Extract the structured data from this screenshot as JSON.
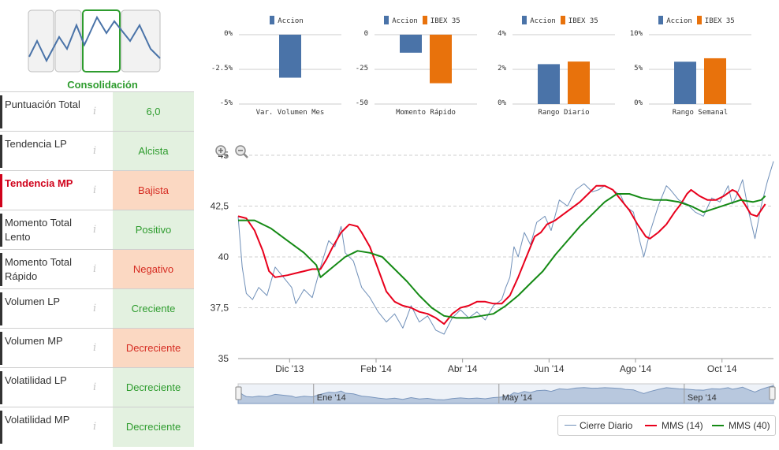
{
  "stage": {
    "label": "Consolidación",
    "icon": "stage-thumbnail-icon"
  },
  "indicators": [
    {
      "label": "Puntuación Total",
      "value": "6,0",
      "status": "good",
      "alert": false
    },
    {
      "label": "Tendencia LP",
      "value": "Alcista",
      "status": "good",
      "alert": false
    },
    {
      "label": "Tendencia MP",
      "value": "Bajista",
      "status": "bad",
      "alert": true
    },
    {
      "label": "Momento Total Lento",
      "value": "Positivo",
      "status": "good",
      "alert": false
    },
    {
      "label": "Momento Total Rápido",
      "value": "Negativo",
      "status": "bad",
      "alert": false
    },
    {
      "label": "Volumen LP",
      "value": "Creciente",
      "status": "good",
      "alert": false
    },
    {
      "label": "Volumen MP",
      "value": "Decreciente",
      "status": "bad",
      "alert": false
    },
    {
      "label": "Volatilidad LP",
      "value": "Decreciente",
      "status": "good",
      "alert": false
    },
    {
      "label": "Volatilidad MP",
      "value": "Decreciente",
      "status": "good",
      "alert": false
    }
  ],
  "info_glyph": "i",
  "colors": {
    "accion": "#4a73a8",
    "ibex": "#e8720c",
    "mms14": "#e8001c",
    "mms40": "#158a15",
    "cierre": "#6f8fb8",
    "good_bg": "#e3f1e0",
    "bad_bg": "#fbd8c2"
  },
  "chart_data": [
    {
      "type": "bar",
      "title": "",
      "xlabel": "Var. Volumen Mes",
      "series": [
        {
          "name": "Accion",
          "values": [
            -3.1
          ]
        }
      ],
      "yticks": [
        "0%",
        "-2.5%",
        "-5%"
      ],
      "ylim": [
        -5,
        0
      ]
    },
    {
      "type": "bar",
      "title": "",
      "xlabel": "Momento Rápido",
      "series": [
        {
          "name": "Accion",
          "values": [
            -13
          ]
        },
        {
          "name": "IBEX 35",
          "values": [
            -35
          ]
        }
      ],
      "yticks": [
        "0",
        "-25",
        "-50"
      ],
      "ylim": [
        -50,
        0
      ]
    },
    {
      "type": "bar",
      "title": "",
      "xlabel": "Rango Diario",
      "series": [
        {
          "name": "Accion",
          "values": [
            2.3
          ]
        },
        {
          "name": "IBEX 35",
          "values": [
            2.45
          ]
        }
      ],
      "yticks": [
        "4%",
        "2%",
        "0%"
      ],
      "ylim": [
        0,
        4
      ]
    },
    {
      "type": "bar",
      "title": "",
      "xlabel": "Rango Semanal",
      "series": [
        {
          "name": "Accion",
          "values": [
            6.1
          ]
        },
        {
          "name": "IBEX 35",
          "values": [
            6.6
          ]
        }
      ],
      "yticks": [
        "10%",
        "5%",
        "0%"
      ],
      "ylim": [
        0,
        10
      ]
    },
    {
      "type": "line",
      "title": "",
      "ylim": [
        35,
        45
      ],
      "yticks": [
        "45",
        "42,5",
        "40",
        "37,5",
        "35"
      ],
      "x_ticks": [
        "Dic '13",
        "Feb '14",
        "Abr '14",
        "Jun '14",
        "Ago '14",
        "Oct '14"
      ],
      "navigator_ticks": [
        "Ene '14",
        "May '14",
        "Sep '14"
      ],
      "x_domain": [
        0,
        12.6
      ],
      "series": [
        {
          "name": "Cierre Diario",
          "points": [
            [
              0,
              42.0
            ],
            [
              0.1,
              39.5
            ],
            [
              0.2,
              38.2
            ],
            [
              0.35,
              37.9
            ],
            [
              0.5,
              38.5
            ],
            [
              0.7,
              38.1
            ],
            [
              0.9,
              39.5
            ],
            [
              1.1,
              39.0
            ],
            [
              1.3,
              38.5
            ],
            [
              1.4,
              37.7
            ],
            [
              1.6,
              38.4
            ],
            [
              1.8,
              38.0
            ],
            [
              2.0,
              39.5
            ],
            [
              2.2,
              40.8
            ],
            [
              2.35,
              40.5
            ],
            [
              2.5,
              41.5
            ],
            [
              2.6,
              40.2
            ],
            [
              2.8,
              39.8
            ],
            [
              3.0,
              38.5
            ],
            [
              3.2,
              38.0
            ],
            [
              3.4,
              37.3
            ],
            [
              3.6,
              36.8
            ],
            [
              3.8,
              37.2
            ],
            [
              4.0,
              36.5
            ],
            [
              4.2,
              37.6
            ],
            [
              4.4,
              36.8
            ],
            [
              4.6,
              37.1
            ],
            [
              4.8,
              36.4
            ],
            [
              5.0,
              36.2
            ],
            [
              5.2,
              37.0
            ],
            [
              5.4,
              37.4
            ],
            [
              5.6,
              37.0
            ],
            [
              5.8,
              37.3
            ],
            [
              6.0,
              36.9
            ],
            [
              6.2,
              37.6
            ],
            [
              6.4,
              37.9
            ],
            [
              6.5,
              38.5
            ],
            [
              6.6,
              39.0
            ],
            [
              6.7,
              40.5
            ],
            [
              6.8,
              40.0
            ],
            [
              6.95,
              41.2
            ],
            [
              7.1,
              40.6
            ],
            [
              7.25,
              41.7
            ],
            [
              7.45,
              42.0
            ],
            [
              7.6,
              41.3
            ],
            [
              7.8,
              42.8
            ],
            [
              8.0,
              42.5
            ],
            [
              8.2,
              43.3
            ],
            [
              8.4,
              43.6
            ],
            [
              8.6,
              43.2
            ],
            [
              8.75,
              43.3
            ],
            [
              8.9,
              43.5
            ],
            [
              9.1,
              43.3
            ],
            [
              9.3,
              43.0
            ],
            [
              9.4,
              42.5
            ],
            [
              9.6,
              42.2
            ],
            [
              9.75,
              40.8
            ],
            [
              9.85,
              40.0
            ],
            [
              10.0,
              41.2
            ],
            [
              10.2,
              42.5
            ],
            [
              10.4,
              43.5
            ],
            [
              10.5,
              43.3
            ],
            [
              10.7,
              42.8
            ],
            [
              10.9,
              42.6
            ],
            [
              11.1,
              42.2
            ],
            [
              11.3,
              42.0
            ],
            [
              11.5,
              42.9
            ],
            [
              11.7,
              42.7
            ],
            [
              11.9,
              43.5
            ],
            [
              12.0,
              42.6
            ],
            [
              12.1,
              43.0
            ],
            [
              12.25,
              43.8
            ],
            [
              12.4,
              42.2
            ],
            [
              12.55,
              40.9
            ],
            [
              12.7,
              42.5
            ],
            [
              12.85,
              43.7
            ],
            [
              13.0,
              44.7
            ]
          ]
        },
        {
          "name": "MMS (14)",
          "points": [
            [
              0,
              42.0
            ],
            [
              0.2,
              41.9
            ],
            [
              0.4,
              41.3
            ],
            [
              0.6,
              40.3
            ],
            [
              0.75,
              39.3
            ],
            [
              0.9,
              39.0
            ],
            [
              1.2,
              39.1
            ],
            [
              1.4,
              39.2
            ],
            [
              1.6,
              39.3
            ],
            [
              1.8,
              39.4
            ],
            [
              2.0,
              39.4
            ],
            [
              2.15,
              39.9
            ],
            [
              2.3,
              40.5
            ],
            [
              2.5,
              41.2
            ],
            [
              2.7,
              41.6
            ],
            [
              2.9,
              41.5
            ],
            [
              3.0,
              41.2
            ],
            [
              3.2,
              40.5
            ],
            [
              3.4,
              39.4
            ],
            [
              3.6,
              38.3
            ],
            [
              3.8,
              37.8
            ],
            [
              4.0,
              37.6
            ],
            [
              4.2,
              37.5
            ],
            [
              4.4,
              37.3
            ],
            [
              4.6,
              37.2
            ],
            [
              4.8,
              37.0
            ],
            [
              5.0,
              36.7
            ],
            [
              5.2,
              37.2
            ],
            [
              5.4,
              37.5
            ],
            [
              5.6,
              37.6
            ],
            [
              5.8,
              37.8
            ],
            [
              6.0,
              37.8
            ],
            [
              6.2,
              37.7
            ],
            [
              6.4,
              37.7
            ],
            [
              6.6,
              38.1
            ],
            [
              6.8,
              39.0
            ],
            [
              7.0,
              40.0
            ],
            [
              7.2,
              41.0
            ],
            [
              7.35,
              41.2
            ],
            [
              7.5,
              41.6
            ],
            [
              7.7,
              41.8
            ],
            [
              7.9,
              42.1
            ],
            [
              8.1,
              42.4
            ],
            [
              8.3,
              42.7
            ],
            [
              8.5,
              43.1
            ],
            [
              8.7,
              43.5
            ],
            [
              8.9,
              43.5
            ],
            [
              9.1,
              43.3
            ],
            [
              9.3,
              42.8
            ],
            [
              9.5,
              42.3
            ],
            [
              9.7,
              41.6
            ],
            [
              9.9,
              41.0
            ],
            [
              10.0,
              40.9
            ],
            [
              10.2,
              41.2
            ],
            [
              10.4,
              41.6
            ],
            [
              10.6,
              42.2
            ],
            [
              10.75,
              42.6
            ],
            [
              10.9,
              43.1
            ],
            [
              11.0,
              43.3
            ],
            [
              11.2,
              43.0
            ],
            [
              11.4,
              42.8
            ],
            [
              11.6,
              42.8
            ],
            [
              11.8,
              43.0
            ],
            [
              12.0,
              43.3
            ],
            [
              12.1,
              43.2
            ],
            [
              12.3,
              42.6
            ],
            [
              12.45,
              42.1
            ],
            [
              12.6,
              42.0
            ],
            [
              12.8,
              42.6
            ]
          ]
        },
        {
          "name": "MMS (40)",
          "points": [
            [
              0,
              41.8
            ],
            [
              0.4,
              41.8
            ],
            [
              0.8,
              41.4
            ],
            [
              1.2,
              40.8
            ],
            [
              1.6,
              40.2
            ],
            [
              1.9,
              39.6
            ],
            [
              2.0,
              39.0
            ],
            [
              2.3,
              39.5
            ],
            [
              2.6,
              40.0
            ],
            [
              2.9,
              40.3
            ],
            [
              3.2,
              40.2
            ],
            [
              3.5,
              40.0
            ],
            [
              3.8,
              39.4
            ],
            [
              4.1,
              38.8
            ],
            [
              4.4,
              38.1
            ],
            [
              4.7,
              37.5
            ],
            [
              5.0,
              37.1
            ],
            [
              5.3,
              37.0
            ],
            [
              5.6,
              37.0
            ],
            [
              5.9,
              37.1
            ],
            [
              6.2,
              37.2
            ],
            [
              6.5,
              37.6
            ],
            [
              6.8,
              38.1
            ],
            [
              7.1,
              38.7
            ],
            [
              7.4,
              39.3
            ],
            [
              7.7,
              40.1
            ],
            [
              8.0,
              40.8
            ],
            [
              8.3,
              41.5
            ],
            [
              8.6,
              42.1
            ],
            [
              8.9,
              42.7
            ],
            [
              9.2,
              43.1
            ],
            [
              9.5,
              43.1
            ],
            [
              9.8,
              42.9
            ],
            [
              10.1,
              42.8
            ],
            [
              10.4,
              42.8
            ],
            [
              10.7,
              42.7
            ],
            [
              11.0,
              42.5
            ],
            [
              11.3,
              42.2
            ],
            [
              11.6,
              42.4
            ],
            [
              11.9,
              42.6
            ],
            [
              12.2,
              42.8
            ],
            [
              12.5,
              42.7
            ],
            [
              12.7,
              42.8
            ],
            [
              12.8,
              43.0
            ]
          ]
        }
      ]
    }
  ]
}
